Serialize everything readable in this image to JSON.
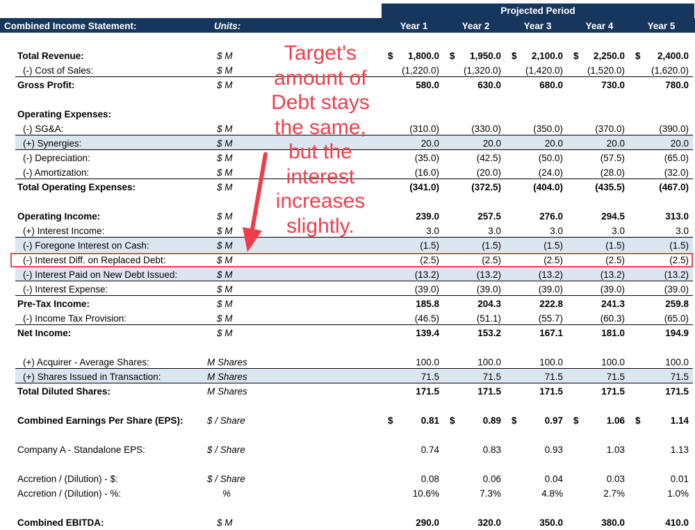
{
  "header": {
    "title": "Combined Income Statement:",
    "units_label": "Units:",
    "period_label": "Projected Period",
    "years": [
      "Year 1",
      "Year 2",
      "Year 3",
      "Year 4",
      "Year 5"
    ]
  },
  "rows": {
    "total_revenue": {
      "label": "Total Revenue:",
      "unit": "$ M",
      "cur": "$",
      "values": [
        "1,800.0",
        "1,950.0",
        "2,100.0",
        "2,250.0",
        "2,400.0"
      ]
    },
    "cost_of_sales": {
      "label": "(-) Cost of Sales:",
      "unit": "$ M",
      "values": [
        "(1,220.0)",
        "(1,320.0)",
        "(1,420.0)",
        "(1,520.0)",
        "(1,620.0)"
      ]
    },
    "gross_profit": {
      "label": "Gross Profit:",
      "unit": "$ M",
      "values": [
        "580.0",
        "630.0",
        "680.0",
        "730.0",
        "780.0"
      ]
    },
    "operating_expenses_header": {
      "label": "Operating Expenses:"
    },
    "sga": {
      "label": "(-) SG&A:",
      "unit": "$ M",
      "values": [
        "(310.0)",
        "(330.0)",
        "(350.0)",
        "(370.0)",
        "(390.0)"
      ]
    },
    "synergies": {
      "label": "(+) Synergies:",
      "unit": "$ M",
      "values": [
        "20.0",
        "20.0",
        "20.0",
        "20.0",
        "20.0"
      ]
    },
    "depreciation": {
      "label": "(-) Depreciation:",
      "unit": "$ M",
      "values": [
        "(35.0)",
        "(42.5)",
        "(50.0)",
        "(57.5)",
        "(65.0)"
      ]
    },
    "amortization": {
      "label": "(-) Amortization:",
      "unit": "$ M",
      "values": [
        "(16.0)",
        "(20.0)",
        "(24.0)",
        "(28.0)",
        "(32.0)"
      ]
    },
    "total_opex": {
      "label": "Total Operating Expenses:",
      "unit": "$ M",
      "values": [
        "(341.0)",
        "(372.5)",
        "(404.0)",
        "(435.5)",
        "(467.0)"
      ]
    },
    "operating_income": {
      "label": "Operating Income:",
      "unit": "$ M",
      "values": [
        "239.0",
        "257.5",
        "276.0",
        "294.5",
        "313.0"
      ]
    },
    "interest_income": {
      "label": "(+) Interest Income:",
      "unit": "$ M",
      "values": [
        "3.0",
        "3.0",
        "3.0",
        "3.0",
        "3.0"
      ]
    },
    "foregone_interest": {
      "label": "(-) Foregone Interest on Cash:",
      "unit": "$ M",
      "values": [
        "(1.5)",
        "(1.5)",
        "(1.5)",
        "(1.5)",
        "(1.5)"
      ]
    },
    "interest_diff": {
      "label": "(-) Interest Diff. on Replaced Debt:",
      "unit": "$ M",
      "values": [
        "(2.5)",
        "(2.5)",
        "(2.5)",
        "(2.5)",
        "(2.5)"
      ]
    },
    "interest_new_debt": {
      "label": "(-) Interest Paid on New Debt Issued:",
      "unit": "$ M",
      "values": [
        "(13.2)",
        "(13.2)",
        "(13.2)",
        "(13.2)",
        "(13.2)"
      ]
    },
    "interest_expense": {
      "label": "(-) Interest Expense:",
      "unit": "$ M",
      "values": [
        "(39.0)",
        "(39.0)",
        "(39.0)",
        "(39.0)",
        "(39.0)"
      ]
    },
    "pretax_income": {
      "label": "Pre-Tax Income:",
      "unit": "$ M",
      "values": [
        "185.8",
        "204.3",
        "222.8",
        "241.3",
        "259.8"
      ]
    },
    "income_tax": {
      "label": "(-) Income Tax Provision:",
      "unit": "$ M",
      "values": [
        "(46.5)",
        "(51.1)",
        "(55.7)",
        "(60.3)",
        "(65.0)"
      ]
    },
    "net_income": {
      "label": "Net Income:",
      "unit": "$ M",
      "values": [
        "139.4",
        "153.2",
        "167.1",
        "181.0",
        "194.9"
      ]
    },
    "acquirer_shares": {
      "label": "(+) Acquirer - Average Shares:",
      "unit": "M Shares",
      "values": [
        "100.0",
        "100.0",
        "100.0",
        "100.0",
        "100.0"
      ]
    },
    "shares_issued": {
      "label": "(+) Shares Issued in Transaction:",
      "unit": "M Shares",
      "values": [
        "71.5",
        "71.5",
        "71.5",
        "71.5",
        "71.5"
      ]
    },
    "total_diluted": {
      "label": "Total Diluted Shares:",
      "unit": "M Shares",
      "values": [
        "171.5",
        "171.5",
        "171.5",
        "171.5",
        "171.5"
      ]
    },
    "combined_eps": {
      "label": "Combined Earnings Per Share (EPS):",
      "unit": "$ / Share",
      "cur": "$",
      "values": [
        "0.81",
        "0.89",
        "0.97",
        "1.06",
        "1.14"
      ]
    },
    "standalone_eps": {
      "label": "Company A - Standalone EPS:",
      "unit": "$ / Share",
      "values": [
        "0.74",
        "0.83",
        "0.93",
        "1.03",
        "1.13"
      ]
    },
    "accretion_dollar": {
      "label": "Accretion / (Dilution) - $:",
      "unit": "$ / Share",
      "values": [
        "0.08",
        "0.06",
        "0.04",
        "0.03",
        "0.01"
      ]
    },
    "accretion_pct": {
      "label": "Accretion / (Dilution) - %:",
      "unit": "%",
      "values": [
        "10.6%",
        "7.3%",
        "4.8%",
        "2.7%",
        "1.0%"
      ]
    },
    "combined_ebitda": {
      "label": "Combined EBITDA:",
      "unit": "$ M",
      "values": [
        "290.0",
        "320.0",
        "350.0",
        "380.0",
        "410.0"
      ]
    }
  },
  "annotation": {
    "lines": [
      "Target's",
      "amount of",
      "Debt stays",
      "the same,",
      "but the",
      "interest",
      "increases",
      "slightly."
    ],
    "color": "#ef3e4a"
  },
  "colors": {
    "header_bg": "#17365d",
    "band_bg": "#dce6f1",
    "highlight_border": "#e8474f"
  }
}
